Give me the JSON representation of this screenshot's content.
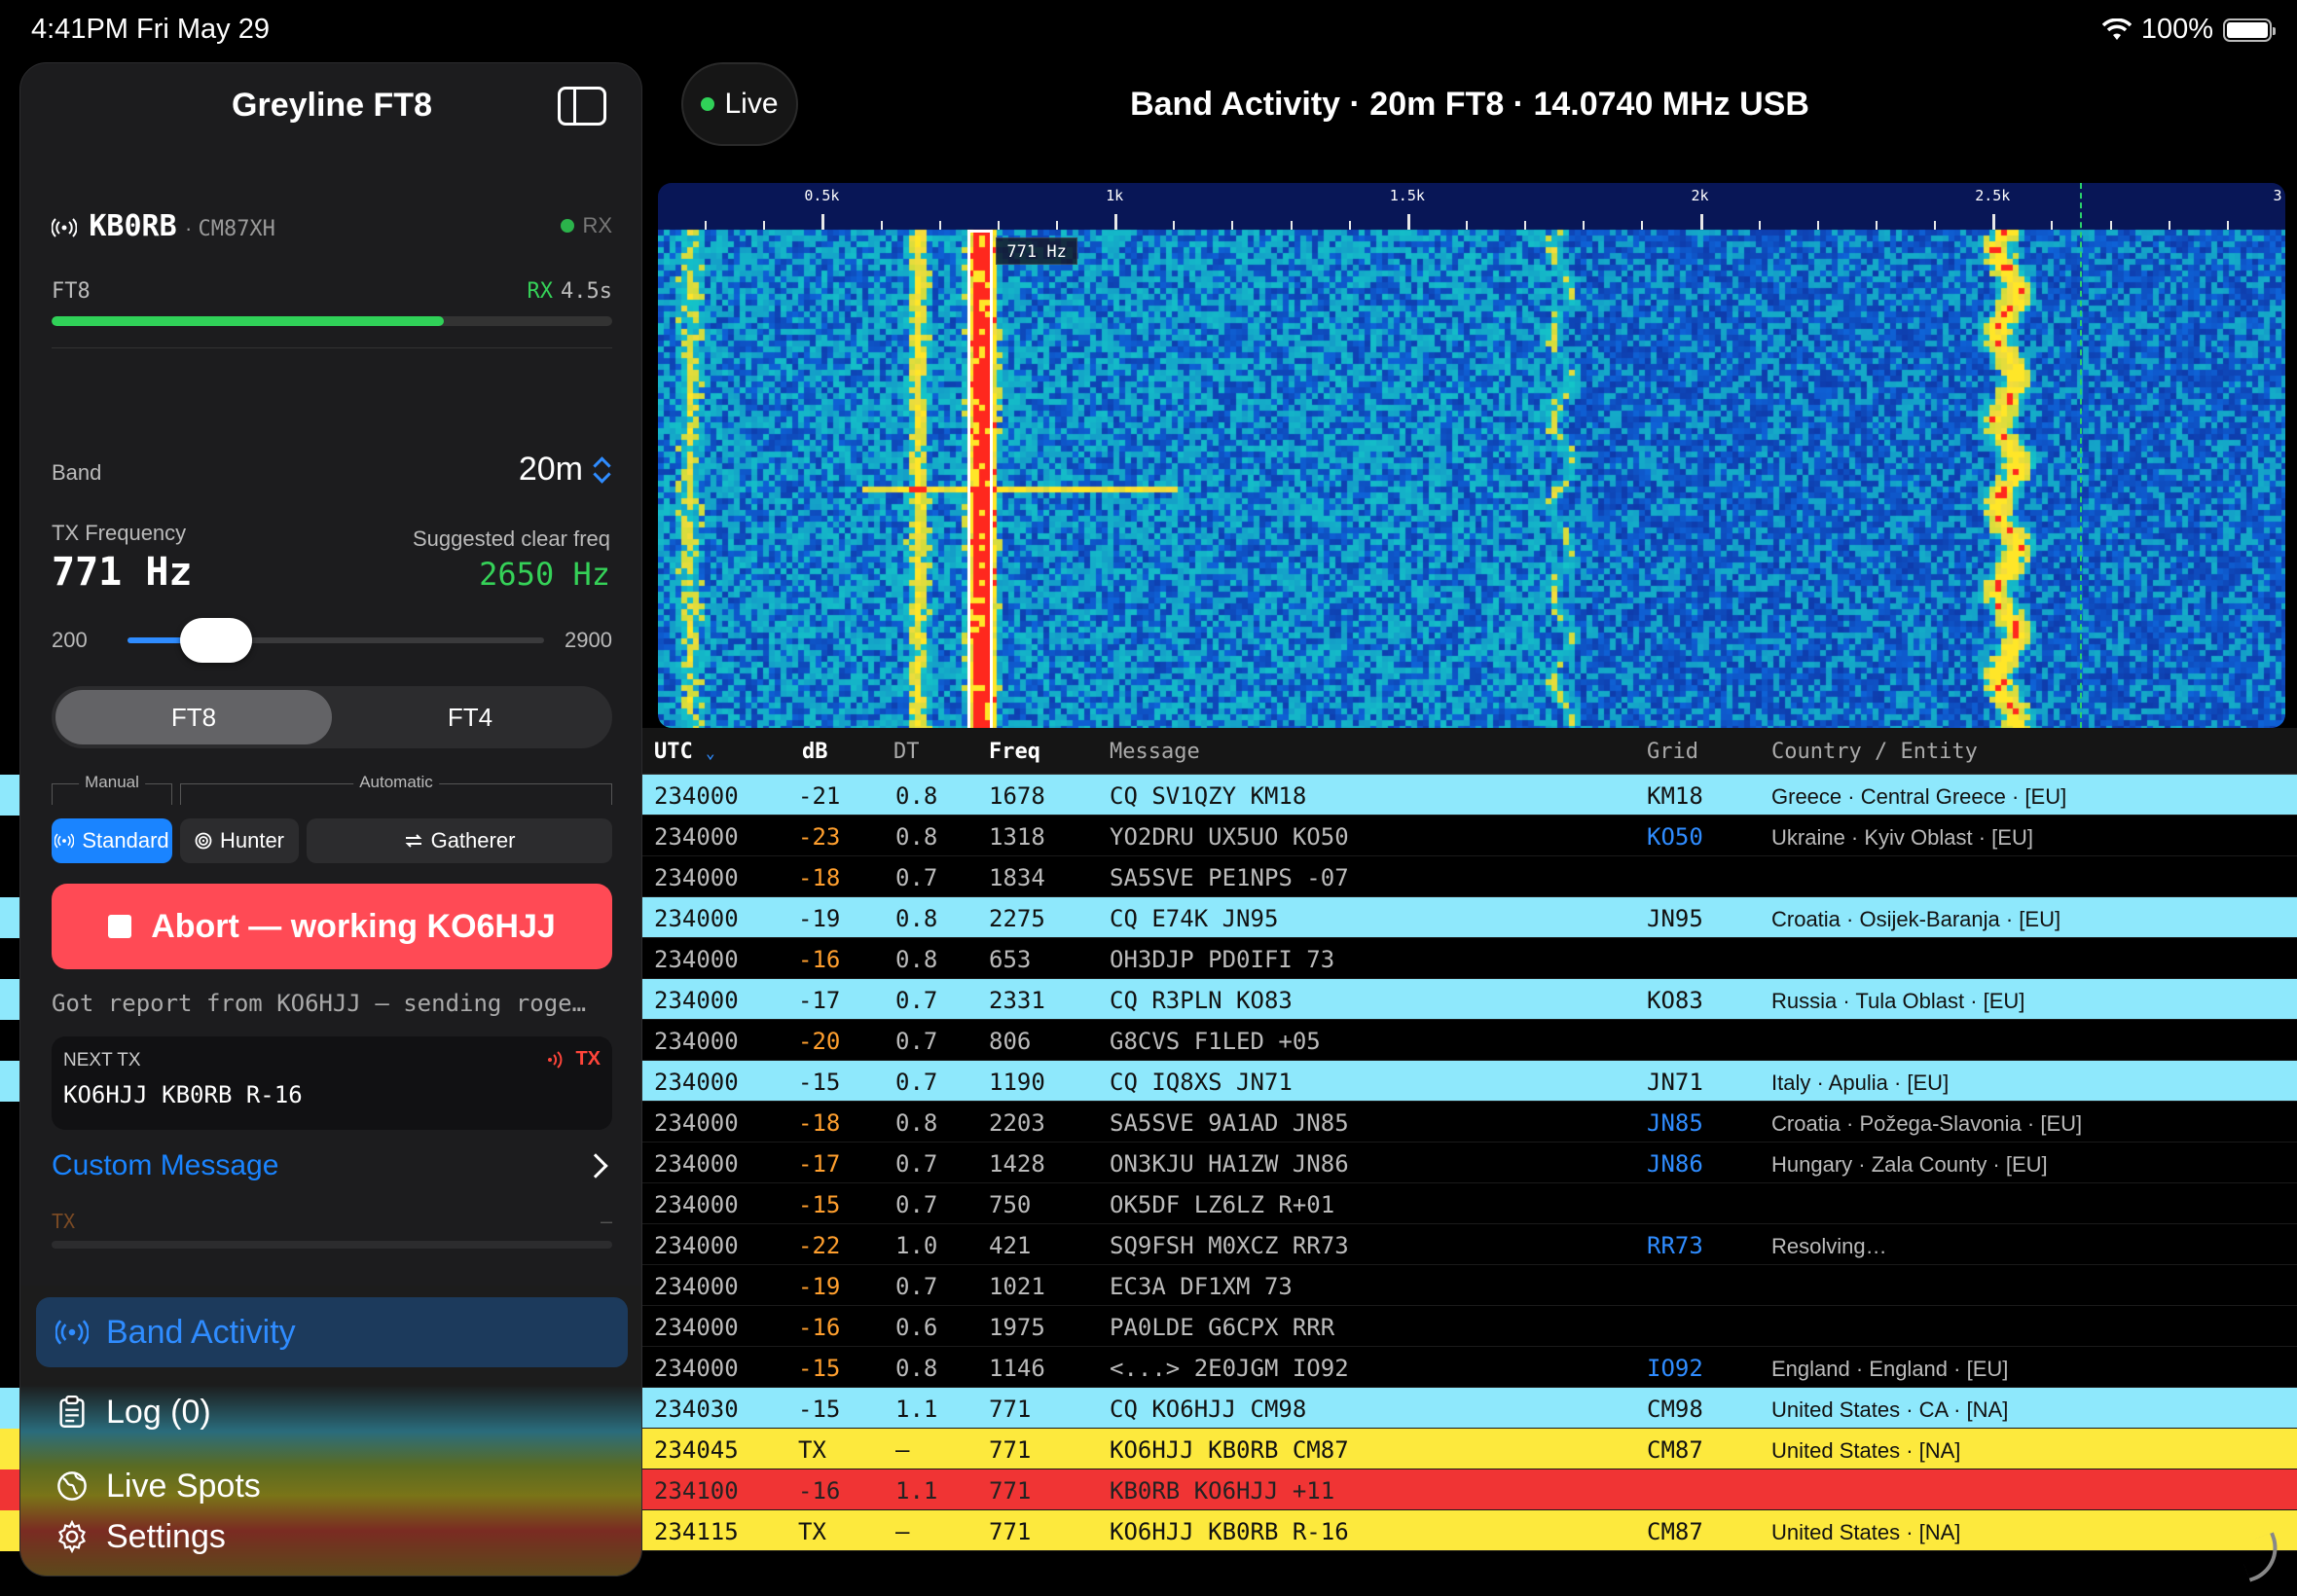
{
  "status_bar": {
    "time": "4:41PM  Fri May 29",
    "battery": "100%",
    "battery_level": 1.0
  },
  "sidebar": {
    "title": "Greyline FT8",
    "station": {
      "callsign": "KB0RB",
      "grid": "CM87XH",
      "state": "RX"
    },
    "mode": {
      "label": "FT8",
      "phase": "RX",
      "timer": "4.5s",
      "progress": 0.7
    },
    "band": {
      "label": "Band",
      "value": "20m"
    },
    "tx_frequency": {
      "label": "TX Frequency",
      "value": "771  Hz",
      "suggested_label": "Suggested clear freq",
      "suggested_value": "2650  Hz"
    },
    "slider": {
      "min": "200",
      "max": "2900",
      "min_value": 200,
      "max_value": 2900,
      "value": 771
    },
    "mode_segment": [
      {
        "label": "FT8",
        "selected": true
      },
      {
        "label": "FT4",
        "selected": false
      }
    ],
    "groups": {
      "manual": "Manual",
      "automatic": "Automatic"
    },
    "strategies": [
      {
        "label": "Standard",
        "icon": "antenna-icon",
        "selected": true
      },
      {
        "label": "Hunter",
        "icon": "target-icon",
        "selected": false
      },
      {
        "label": "Gatherer",
        "icon": "arrows-icon",
        "selected": false
      }
    ],
    "abort_button": "Abort — working KO6HJJ",
    "abort_status": "Got report from KO6HJJ — sending roge…",
    "next_tx": {
      "label": "NEXT TX",
      "badge": "TX",
      "message": "KO6HJJ KB0RB R-16"
    },
    "custom_message": "Custom Message",
    "tx_mini": {
      "label": "TX",
      "value": "—"
    },
    "nav": [
      {
        "label": "Band Activity",
        "icon": "antenna-icon",
        "selected": true
      },
      {
        "label": "Log (0)",
        "icon": "clipboard-icon",
        "selected": false
      },
      {
        "label": "Live Spots",
        "icon": "globe-icon",
        "selected": false
      },
      {
        "label": "Settings",
        "icon": "gear-icon",
        "selected": false
      }
    ]
  },
  "main": {
    "live_button": "Live",
    "title": "Band Activity · 20m FT8 · 14.0740 MHz USB",
    "waterfall": {
      "min_hz": 220,
      "max_hz": 3000,
      "tick_labels": [
        {
          "hz": 500,
          "label": "0.5k"
        },
        {
          "hz": 1000,
          "label": "1k"
        },
        {
          "hz": 1500,
          "label": "1.5k"
        },
        {
          "hz": 2000,
          "label": "2k"
        },
        {
          "hz": 2500,
          "label": "2.5k"
        },
        {
          "hz": 3000,
          "label": "3"
        }
      ],
      "tx_hz": 771,
      "tx_label": "771 Hz",
      "clear_hz": 2650,
      "colors": {
        "background": "#0c1f78",
        "signal": "#ffff40",
        "strong": "#ff2020"
      }
    },
    "table": {
      "columns": {
        "utc": "UTC",
        "db": "dB",
        "dt": "DT",
        "freq": "Freq",
        "message": "Message",
        "grid": "Grid",
        "country": "Country / Entity"
      },
      "rows": [
        {
          "utc": "234000",
          "db": "-21",
          "dt": "0.8",
          "freq": "1678",
          "msg": "CQ SV1QZY KM18",
          "grid": "KM18",
          "country": "Greece · Central Greece · [EU]",
          "kind": "cq",
          "warn": false,
          "grid_link": false
        },
        {
          "utc": "234000",
          "db": "-23",
          "dt": "0.8",
          "freq": "1318",
          "msg": "YO2DRU UX5UO KO50",
          "grid": "KO50",
          "country": "Ukraine · Kyiv Oblast · [EU]",
          "kind": "",
          "warn": true,
          "grid_link": true
        },
        {
          "utc": "234000",
          "db": "-18",
          "dt": "0.7",
          "freq": "1834",
          "msg": "SA5SVE PE1NPS -07",
          "grid": "",
          "country": "",
          "kind": "",
          "warn": true,
          "grid_link": false
        },
        {
          "utc": "234000",
          "db": "-19",
          "dt": "0.8",
          "freq": "2275",
          "msg": "CQ E74K JN95",
          "grid": "JN95",
          "country": "Croatia · Osijek-Baranja · [EU]",
          "kind": "cq",
          "warn": false,
          "grid_link": false
        },
        {
          "utc": "234000",
          "db": "-16",
          "dt": "0.8",
          "freq": "653",
          "msg": "OH3DJP PD0IFI 73",
          "grid": "",
          "country": "",
          "kind": "",
          "warn": true,
          "grid_link": false
        },
        {
          "utc": "234000",
          "db": "-17",
          "dt": "0.7",
          "freq": "2331",
          "msg": "CQ R3PLN KO83",
          "grid": "KO83",
          "country": "Russia · Tula Oblast · [EU]",
          "kind": "cq",
          "warn": false,
          "grid_link": false
        },
        {
          "utc": "234000",
          "db": "-20",
          "dt": "0.7",
          "freq": "806",
          "msg": "G8CVS F1LED +05",
          "grid": "",
          "country": "",
          "kind": "",
          "warn": true,
          "grid_link": false
        },
        {
          "utc": "234000",
          "db": "-15",
          "dt": "0.7",
          "freq": "1190",
          "msg": "CQ IQ8XS JN71",
          "grid": "JN71",
          "country": "Italy · Apulia · [EU]",
          "kind": "cq",
          "warn": false,
          "grid_link": false
        },
        {
          "utc": "234000",
          "db": "-18",
          "dt": "0.8",
          "freq": "2203",
          "msg": "SA5SVE 9A1AD JN85",
          "grid": "JN85",
          "country": "Croatia · Požega-Slavonia · [EU]",
          "kind": "",
          "warn": true,
          "grid_link": true
        },
        {
          "utc": "234000",
          "db": "-17",
          "dt": "0.7",
          "freq": "1428",
          "msg": "ON3KJU HA1ZW JN86",
          "grid": "JN86",
          "country": "Hungary · Zala County · [EU]",
          "kind": "",
          "warn": true,
          "grid_link": true
        },
        {
          "utc": "234000",
          "db": "-15",
          "dt": "0.7",
          "freq": "750",
          "msg": "OK5DF LZ6LZ R+01",
          "grid": "",
          "country": "",
          "kind": "",
          "warn": true,
          "grid_link": false
        },
        {
          "utc": "234000",
          "db": "-22",
          "dt": "1.0",
          "freq": "421",
          "msg": "SQ9FSH M0XCZ RR73",
          "grid": "RR73",
          "country": "Resolving…",
          "kind": "",
          "warn": true,
          "grid_link": true
        },
        {
          "utc": "234000",
          "db": "-19",
          "dt": "0.7",
          "freq": "1021",
          "msg": "EC3A DF1XM 73",
          "grid": "",
          "country": "",
          "kind": "",
          "warn": true,
          "grid_link": false
        },
        {
          "utc": "234000",
          "db": "-16",
          "dt": "0.6",
          "freq": "1975",
          "msg": "PA0LDE G6CPX RRR",
          "grid": "",
          "country": "",
          "kind": "",
          "warn": true,
          "grid_link": false
        },
        {
          "utc": "234000",
          "db": "-15",
          "dt": "0.8",
          "freq": "1146",
          "msg": "<...> 2E0JGM IO92",
          "grid": "IO92",
          "country": "England · England · [EU]",
          "kind": "",
          "warn": true,
          "grid_link": true
        },
        {
          "utc": "234030",
          "db": "-15",
          "dt": "1.1",
          "freq": "771",
          "msg": "CQ KO6HJJ CM98",
          "grid": "CM98",
          "country": "United States · CA · [NA]",
          "kind": "cq",
          "warn": false,
          "grid_link": false
        },
        {
          "utc": "234045",
          "db": "TX",
          "dt": "—",
          "freq": "771",
          "msg": "KO6HJJ KB0RB CM87",
          "grid": "CM87",
          "country": "United States · [NA]",
          "kind": "yellow",
          "warn": false,
          "grid_link": false
        },
        {
          "utc": "234100",
          "db": "-16",
          "dt": "1.1",
          "freq": "771",
          "msg": "KB0RB KO6HJJ +11",
          "grid": "",
          "country": "",
          "kind": "red",
          "warn": false,
          "grid_link": false
        },
        {
          "utc": "234115",
          "db": "TX",
          "dt": "—",
          "freq": "771",
          "msg": "KO6HJJ KB0RB R-16",
          "grid": "CM87",
          "country": "United States · [NA]",
          "kind": "yellow",
          "warn": false,
          "grid_link": false
        }
      ]
    }
  }
}
